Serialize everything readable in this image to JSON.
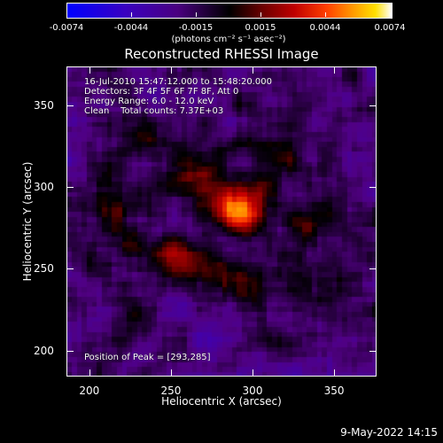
{
  "colorbar": {
    "ticks": [
      "-0.0074",
      "-0.0044",
      "-0.0015",
      "0.0015",
      "0.0044",
      "0.0074"
    ],
    "units": "(photons cm⁻² s⁻¹ asec⁻²)"
  },
  "info": {
    "line1": "16-Jul-2010 15:47:12.000 to 15:48:20.000",
    "line2": "Detectors: 3F 4F 5F 6F 7F 8F, Att 0",
    "line3": "Energy Range: 6.0 - 12.0 keV",
    "line4": "Clean    Total counts: 7.37E+03",
    "peak": "Position of Peak = [293,285]"
  },
  "timestamp": "9-May-2022 14:15",
  "chart_data": {
    "type": "heatmap",
    "title": "Reconstructed RHESSI Image",
    "xlabel": "Heliocentric X (arcsec)",
    "ylabel": "Heliocentric Y (arcsec)",
    "xlim": [
      186,
      376
    ],
    "ylim": [
      184,
      374
    ],
    "xticks": [
      "200",
      "250",
      "300",
      "350"
    ],
    "yticks": [
      "200",
      "250",
      "300",
      "350"
    ],
    "xtick_values": [
      200,
      250,
      300,
      350
    ],
    "ytick_values": [
      200,
      250,
      300,
      350
    ],
    "value_range": [
      -0.0074,
      0.0074
    ],
    "peak_position": [
      293,
      285
    ],
    "sources": [
      {
        "x": 293,
        "y": 285,
        "amp": 0.0074,
        "sx": 11,
        "sy": 9
      },
      {
        "x": 268,
        "y": 302,
        "amp": 0.0036,
        "sx": 15,
        "sy": 12
      },
      {
        "x": 255,
        "y": 258,
        "amp": 0.0033,
        "sx": 18,
        "sy": 11
      },
      {
        "x": 238,
        "y": 330,
        "amp": 0.0026,
        "sx": 14,
        "sy": 10
      },
      {
        "x": 312,
        "y": 322,
        "amp": 0.0024,
        "sx": 13,
        "sy": 12
      },
      {
        "x": 335,
        "y": 285,
        "amp": 0.0021,
        "sx": 13,
        "sy": 16
      },
      {
        "x": 212,
        "y": 290,
        "amp": 0.002,
        "sx": 12,
        "sy": 14
      },
      {
        "x": 300,
        "y": 238,
        "amp": 0.002,
        "sx": 14,
        "sy": 10
      },
      {
        "x": 228,
        "y": 220,
        "amp": 0.0017,
        "sx": 10,
        "sy": 10
      },
      {
        "x": 350,
        "y": 240,
        "amp": 0.0015,
        "sx": 10,
        "sy": 12
      }
    ]
  }
}
